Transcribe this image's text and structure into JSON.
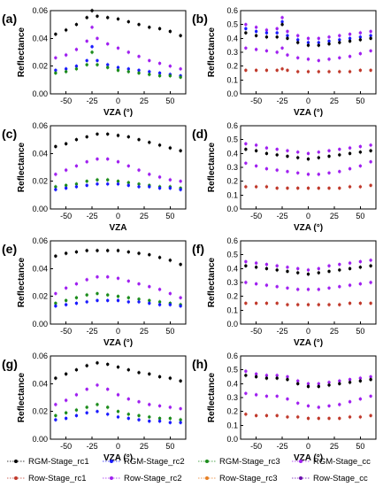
{
  "chart_data": {
    "panel_tags": [
      "(a)",
      "(b)",
      "(c)",
      "(d)",
      "(e)",
      "(f)",
      "(g)",
      "(h)"
    ],
    "legend": [
      {
        "name": "RGM-Stage_rc1",
        "color": "#000000"
      },
      {
        "name": "RGM-Stage_rc2",
        "color": "#1a1aff"
      },
      {
        "name": "RGM-Stage_rc3",
        "color": "#1b8c1b"
      },
      {
        "name": "RGM-Stage_cc",
        "color": "#a020f0"
      },
      {
        "name": "Row-Stage_rc1",
        "color": "#c0392b"
      },
      {
        "name": "Row-Stage_rc2",
        "color": "#a020f0"
      },
      {
        "name": "Row-Stage_rc3",
        "color": "#e67e22"
      },
      {
        "name": "Row-Stage_cc",
        "color": "#6a0dad"
      }
    ],
    "panels": [
      {
        "tag": "(a)",
        "type": "scatter",
        "xlabel": "VZA (°)",
        "ylabel": "Reflectance",
        "xlim": [
          -65,
          65
        ],
        "ylim": [
          0,
          0.06
        ],
        "yticks": [
          "0.00",
          "0.02",
          "0.04",
          "0.06"
        ],
        "xticks": [
          "-50",
          "-25",
          "0",
          "25",
          "50"
        ],
        "x": [
          -60,
          -50,
          -40,
          -30,
          -25,
          -20,
          -10,
          0,
          10,
          20,
          30,
          40,
          50,
          60
        ],
        "series": [
          {
            "name": "RGM-Stage_rc1",
            "values": [
              0.043,
              0.046,
              0.05,
              0.055,
              0.06,
              0.056,
              0.055,
              0.054,
              0.052,
              0.05,
              0.048,
              0.047,
              0.045,
              0.042
            ]
          },
          {
            "name": "RGM-Stage_cc",
            "values": [
              0.026,
              0.028,
              0.032,
              0.038,
              0.048,
              0.04,
              0.036,
              0.033,
              0.03,
              0.027,
              0.024,
              0.022,
              0.02,
              0.018
            ]
          },
          {
            "name": "RGM-Stage_rc2",
            "values": [
              0.017,
              0.018,
              0.02,
              0.024,
              0.034,
              0.024,
              0.021,
              0.019,
              0.018,
              0.017,
              0.016,
              0.015,
              0.014,
              0.013
            ]
          },
          {
            "name": "RGM-Stage_rc3",
            "values": [
              0.015,
              0.016,
              0.018,
              0.021,
              0.03,
              0.021,
              0.019,
              0.017,
              0.016,
              0.015,
              0.014,
              0.013,
              0.013,
              0.012
            ]
          }
        ]
      },
      {
        "tag": "(b)",
        "type": "scatter",
        "xlabel": "VZA (°)",
        "ylabel": "Reflectance",
        "xlim": [
          -65,
          65
        ],
        "ylim": [
          0,
          0.6
        ],
        "yticks": [
          "0.0",
          "0.1",
          "0.2",
          "0.3",
          "0.4",
          "0.5",
          "0.6"
        ],
        "xticks": [
          "-50",
          "-25",
          "0",
          "25",
          "50"
        ],
        "x": [
          -60,
          -50,
          -40,
          -30,
          -25,
          -20,
          -10,
          0,
          10,
          20,
          30,
          40,
          50,
          60
        ],
        "series": [
          {
            "name": "RGM-Stage_cc",
            "values": [
              0.5,
              0.48,
              0.46,
              0.47,
              0.55,
              0.45,
              0.42,
              0.4,
              0.4,
              0.41,
              0.42,
              0.43,
              0.44,
              0.45
            ]
          },
          {
            "name": "RGM-Stage_rc2",
            "values": [
              0.47,
              0.45,
              0.44,
              0.44,
              0.52,
              0.42,
              0.39,
              0.37,
              0.37,
              0.38,
              0.39,
              0.4,
              0.41,
              0.42
            ]
          },
          {
            "name": "RGM-Stage_rc1",
            "values": [
              0.44,
              0.42,
              0.41,
              0.41,
              0.5,
              0.4,
              0.37,
              0.35,
              0.35,
              0.36,
              0.37,
              0.38,
              0.39,
              0.4
            ]
          },
          {
            "name": "Row-Stage_rc2",
            "values": [
              0.33,
              0.32,
              0.31,
              0.3,
              0.33,
              0.28,
              0.26,
              0.25,
              0.24,
              0.25,
              0.26,
              0.27,
              0.29,
              0.31
            ]
          },
          {
            "name": "Row-Stage_rc1",
            "values": [
              0.17,
              0.17,
              0.17,
              0.17,
              0.18,
              0.17,
              0.16,
              0.16,
              0.16,
              0.16,
              0.16,
              0.16,
              0.17,
              0.17
            ]
          }
        ]
      },
      {
        "tag": "(c)",
        "type": "scatter",
        "xlabel": "VZA",
        "ylabel": "Reflectance",
        "xlim": [
          -65,
          65
        ],
        "ylim": [
          0,
          0.06
        ],
        "yticks": [
          "0.00",
          "0.02",
          "0.04",
          "0.06"
        ],
        "xticks": [
          "-50",
          "-25",
          "0",
          "25",
          "50"
        ],
        "x": [
          -60,
          -50,
          -40,
          -30,
          -20,
          -10,
          0,
          10,
          20,
          30,
          40,
          50,
          60
        ],
        "series": [
          {
            "name": "RGM-Stage_rc1",
            "values": [
              0.045,
              0.047,
              0.05,
              0.052,
              0.054,
              0.054,
              0.053,
              0.052,
              0.05,
              0.048,
              0.046,
              0.044,
              0.042
            ]
          },
          {
            "name": "RGM-Stage_cc",
            "values": [
              0.025,
              0.028,
              0.031,
              0.034,
              0.036,
              0.036,
              0.034,
              0.031,
              0.028,
              0.025,
              0.023,
              0.021,
              0.02
            ]
          },
          {
            "name": "RGM-Stage_rc3",
            "values": [
              0.016,
              0.017,
              0.018,
              0.02,
              0.021,
              0.021,
              0.02,
              0.019,
              0.018,
              0.017,
              0.016,
              0.016,
              0.015
            ]
          },
          {
            "name": "RGM-Stage_rc2",
            "values": [
              0.014,
              0.015,
              0.016,
              0.017,
              0.018,
              0.018,
              0.018,
              0.017,
              0.016,
              0.016,
              0.015,
              0.015,
              0.014
            ]
          }
        ]
      },
      {
        "tag": "(d)",
        "type": "scatter",
        "xlabel": "VZA (°)",
        "ylabel": "Reflectance",
        "xlim": [
          -65,
          65
        ],
        "ylim": [
          0,
          0.6
        ],
        "yticks": [
          "0.0",
          "0.1",
          "0.2",
          "0.3",
          "0.4",
          "0.5",
          "0.6"
        ],
        "xticks": [
          "-50",
          "-25",
          "0",
          "25",
          "50"
        ],
        "x": [
          -60,
          -50,
          -40,
          -30,
          -20,
          -10,
          0,
          10,
          20,
          30,
          40,
          50,
          60
        ],
        "series": [
          {
            "name": "RGM-Stage_cc",
            "values": [
              0.47,
              0.46,
              0.44,
              0.43,
              0.42,
              0.41,
              0.4,
              0.41,
              0.42,
              0.43,
              0.44,
              0.45,
              0.46
            ]
          },
          {
            "name": "RGM-Stage_rc1",
            "values": [
              0.43,
              0.42,
              0.4,
              0.39,
              0.38,
              0.37,
              0.36,
              0.37,
              0.38,
              0.39,
              0.4,
              0.41,
              0.42
            ]
          },
          {
            "name": "Row-Stage_rc2",
            "values": [
              0.33,
              0.31,
              0.29,
              0.28,
              0.27,
              0.26,
              0.25,
              0.25,
              0.26,
              0.27,
              0.29,
              0.31,
              0.34
            ]
          },
          {
            "name": "Row-Stage_rc1",
            "values": [
              0.16,
              0.16,
              0.16,
              0.15,
              0.15,
              0.15,
              0.15,
              0.15,
              0.15,
              0.15,
              0.16,
              0.16,
              0.17
            ]
          }
        ]
      },
      {
        "tag": "(e)",
        "type": "scatter",
        "xlabel": "VZA (°)",
        "ylabel": "Reflectance",
        "xlim": [
          -65,
          65
        ],
        "ylim": [
          0,
          0.06
        ],
        "yticks": [
          "0.00",
          "0.02",
          "0.04",
          "0.06"
        ],
        "xticks": [
          "-50",
          "-25",
          "0",
          "25",
          "50"
        ],
        "x": [
          -60,
          -50,
          -40,
          -30,
          -20,
          -10,
          0,
          10,
          20,
          30,
          40,
          50,
          60
        ],
        "series": [
          {
            "name": "RGM-Stage_rc1",
            "values": [
              0.049,
              0.051,
              0.052,
              0.053,
              0.053,
              0.053,
              0.053,
              0.052,
              0.051,
              0.05,
              0.048,
              0.046,
              0.043
            ]
          },
          {
            "name": "RGM-Stage_cc",
            "values": [
              0.022,
              0.026,
              0.029,
              0.032,
              0.034,
              0.034,
              0.033,
              0.031,
              0.029,
              0.027,
              0.025,
              0.022,
              0.019
            ]
          },
          {
            "name": "RGM-Stage_rc3",
            "values": [
              0.015,
              0.017,
              0.019,
              0.021,
              0.022,
              0.021,
              0.02,
              0.019,
              0.018,
              0.017,
              0.016,
              0.015,
              0.014
            ]
          },
          {
            "name": "RGM-Stage_rc2",
            "values": [
              0.013,
              0.014,
              0.015,
              0.016,
              0.017,
              0.017,
              0.017,
              0.016,
              0.016,
              0.015,
              0.014,
              0.014,
              0.013
            ]
          }
        ]
      },
      {
        "tag": "(f)",
        "type": "scatter",
        "xlabel": "VZA (°)",
        "ylabel": "Reflectance",
        "xlim": [
          -65,
          65
        ],
        "ylim": [
          0,
          0.6
        ],
        "yticks": [
          "0.0",
          "0.1",
          "0.2",
          "0.3",
          "0.4",
          "0.5",
          "0.6"
        ],
        "xticks": [
          "-50",
          "-25",
          "0",
          "25",
          "50"
        ],
        "x": [
          -60,
          -50,
          -40,
          -30,
          -20,
          -10,
          0,
          10,
          20,
          30,
          40,
          50,
          60
        ],
        "series": [
          {
            "name": "RGM-Stage_cc",
            "values": [
              0.45,
              0.44,
              0.43,
              0.42,
              0.41,
              0.4,
              0.39,
              0.4,
              0.42,
              0.43,
              0.44,
              0.45,
              0.46
            ]
          },
          {
            "name": "RGM-Stage_rc1",
            "values": [
              0.42,
              0.41,
              0.4,
              0.39,
              0.38,
              0.37,
              0.36,
              0.37,
              0.38,
              0.39,
              0.4,
              0.41,
              0.42
            ]
          },
          {
            "name": "Row-Stage_rc2",
            "values": [
              0.3,
              0.29,
              0.28,
              0.27,
              0.26,
              0.25,
              0.25,
              0.25,
              0.26,
              0.27,
              0.28,
              0.29,
              0.3
            ]
          },
          {
            "name": "Row-Stage_rc1",
            "values": [
              0.15,
              0.15,
              0.15,
              0.15,
              0.14,
              0.14,
              0.14,
              0.14,
              0.14,
              0.14,
              0.15,
              0.15,
              0.15
            ]
          }
        ]
      },
      {
        "tag": "(g)",
        "type": "scatter",
        "xlabel": "VZA (°)",
        "ylabel": "Reflectance",
        "xlim": [
          -65,
          65
        ],
        "ylim": [
          0,
          0.06
        ],
        "yticks": [
          "0.00",
          "0.02",
          "0.04",
          "0.06"
        ],
        "xticks": [
          "-50",
          "-25",
          "0",
          "25",
          "50"
        ],
        "x": [
          -60,
          -50,
          -40,
          -30,
          -20,
          -10,
          0,
          10,
          20,
          30,
          40,
          50,
          60
        ],
        "series": [
          {
            "name": "RGM-Stage_rc1",
            "values": [
              0.044,
              0.047,
              0.05,
              0.053,
              0.055,
              0.054,
              0.052,
              0.05,
              0.048,
              0.047,
              0.045,
              0.044,
              0.042
            ]
          },
          {
            "name": "RGM-Stage_cc",
            "values": [
              0.025,
              0.028,
              0.032,
              0.036,
              0.039,
              0.036,
              0.032,
              0.029,
              0.027,
              0.025,
              0.024,
              0.023,
              0.022
            ]
          },
          {
            "name": "RGM-Stage_rc3",
            "values": [
              0.017,
              0.019,
              0.021,
              0.023,
              0.025,
              0.023,
              0.02,
              0.018,
              0.017,
              0.016,
              0.015,
              0.015,
              0.014
            ]
          },
          {
            "name": "RGM-Stage_rc2",
            "values": [
              0.014,
              0.015,
              0.017,
              0.019,
              0.02,
              0.018,
              0.016,
              0.015,
              0.014,
              0.013,
              0.013,
              0.012,
              0.012
            ]
          }
        ]
      },
      {
        "tag": "(h)",
        "type": "scatter",
        "xlabel": "VZA (°)",
        "ylabel": "Reflectance",
        "xlim": [
          -65,
          65
        ],
        "ylim": [
          0,
          0.6
        ],
        "yticks": [
          "0.0",
          "0.1",
          "0.2",
          "0.3",
          "0.4",
          "0.5",
          "0.6"
        ],
        "xticks": [
          "-50",
          "-25",
          "0",
          "25",
          "50"
        ],
        "x": [
          -60,
          -50,
          -40,
          -30,
          -20,
          -10,
          0,
          10,
          20,
          30,
          40,
          50,
          60
        ],
        "series": [
          {
            "name": "RGM-Stage_cc",
            "values": [
              0.49,
              0.47,
              0.46,
              0.46,
              0.45,
              0.42,
              0.4,
              0.4,
              0.41,
              0.42,
              0.43,
              0.44,
              0.45
            ]
          },
          {
            "name": "RGM-Stage_rc1",
            "values": [
              0.46,
              0.45,
              0.44,
              0.44,
              0.43,
              0.4,
              0.38,
              0.38,
              0.39,
              0.4,
              0.41,
              0.42,
              0.43
            ]
          },
          {
            "name": "Row-Stage_rc2",
            "values": [
              0.33,
              0.32,
              0.31,
              0.31,
              0.29,
              0.26,
              0.24,
              0.23,
              0.24,
              0.25,
              0.27,
              0.29,
              0.31
            ]
          },
          {
            "name": "Row-Stage_rc1",
            "values": [
              0.18,
              0.17,
              0.17,
              0.17,
              0.16,
              0.16,
              0.15,
              0.15,
              0.15,
              0.15,
              0.16,
              0.16,
              0.17
            ]
          }
        ]
      }
    ]
  }
}
